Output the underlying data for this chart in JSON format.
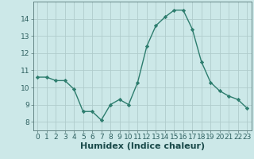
{
  "x": [
    0,
    1,
    2,
    3,
    4,
    5,
    6,
    7,
    8,
    9,
    10,
    11,
    12,
    13,
    14,
    15,
    16,
    17,
    18,
    19,
    20,
    21,
    22,
    23
  ],
  "y": [
    10.6,
    10.6,
    10.4,
    10.4,
    9.9,
    8.6,
    8.6,
    8.1,
    9.0,
    9.3,
    9.0,
    10.3,
    12.4,
    13.6,
    14.1,
    14.5,
    14.5,
    13.4,
    11.5,
    10.3,
    9.8,
    9.5,
    9.3,
    8.8
  ],
  "line_color": "#2d7d6e",
  "marker": "D",
  "marker_size": 2.2,
  "bg_color": "#cce8e8",
  "grid_color": "#b0cccc",
  "xlabel": "Humidex (Indice chaleur)",
  "xlabel_fontsize": 8,
  "ylim": [
    7.5,
    15.0
  ],
  "xlim": [
    -0.5,
    23.5
  ],
  "yticks": [
    8,
    9,
    10,
    11,
    12,
    13,
    14
  ],
  "xticks": [
    0,
    1,
    2,
    3,
    4,
    5,
    6,
    7,
    8,
    9,
    10,
    11,
    12,
    13,
    14,
    15,
    16,
    17,
    18,
    19,
    20,
    21,
    22,
    23
  ],
  "tick_fontsize": 6.5,
  "line_width": 1.0
}
